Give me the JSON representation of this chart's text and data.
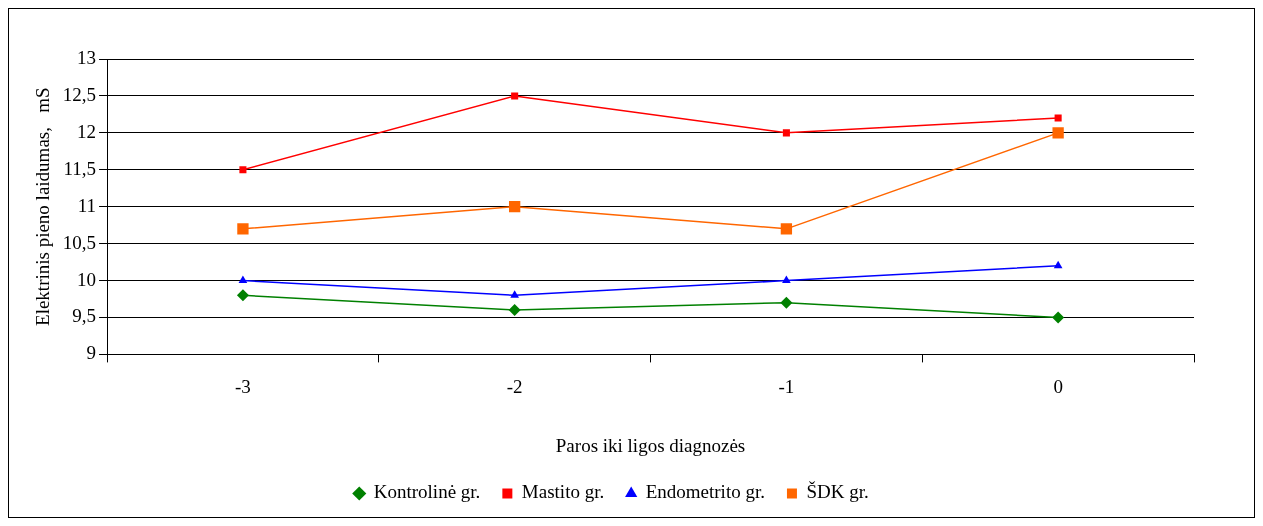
{
  "chart_data": {
    "type": "line",
    "xlabel": "Paros iki ligos diagnozės",
    "ylabel": "Elektrinis pieno laidumas,   mS",
    "categories": [
      "-3",
      "-2",
      "-1",
      "0"
    ],
    "series": [
      {
        "name": "Kontrolinė gr.",
        "color": "#008000",
        "marker": "diamond",
        "values": [
          9.8,
          9.6,
          9.7,
          9.5
        ]
      },
      {
        "name": "Mastito gr.",
        "color": "#ff0000",
        "marker": "square",
        "values": [
          11.5,
          12.5,
          12.0,
          12.2
        ]
      },
      {
        "name": "Endometrito gr.",
        "color": "#0000ff",
        "marker": "triangle",
        "values": [
          10.0,
          9.8,
          10.0,
          10.2
        ]
      },
      {
        "name": "ŠDK gr.",
        "color": "#ff6600",
        "marker": "square",
        "values": [
          10.7,
          11.0,
          10.7,
          12.0
        ]
      }
    ],
    "ylim": [
      9,
      13
    ],
    "yticks": [
      9,
      {
        "value": 9.5,
        "label": "9,5"
      },
      10,
      {
        "value": 10.5,
        "label": "10,5"
      },
      11,
      {
        "value": 11.5,
        "label": "11,5"
      },
      12,
      {
        "value": 12.5,
        "label": "12,5"
      },
      13
    ],
    "grid": "y",
    "legend": "bottom",
    "line_style": "solid"
  }
}
